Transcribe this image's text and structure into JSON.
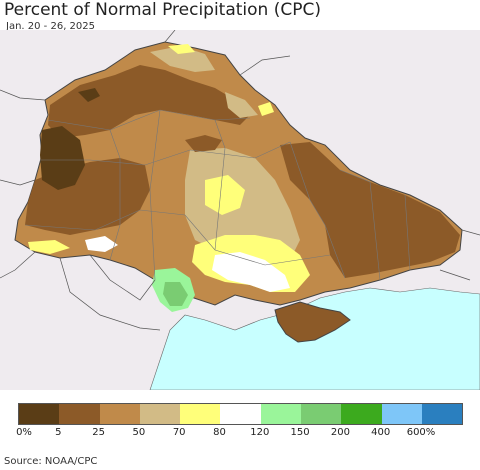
{
  "title": "Percent of Normal Precipitation (CPC)",
  "subtitle": "Jan. 20 - 26, 2025",
  "source": "Source: NOAA/CPC",
  "legend": {
    "colors": [
      "#5a3d16",
      "#8c5a28",
      "#c08a4a",
      "#d2bb86",
      "#ffff7a",
      "#ffffff",
      "#9af59a",
      "#7acc72",
      "#3caa1e",
      "#7ec6f8",
      "#2a7fbf"
    ],
    "labels": [
      "0%",
      "5",
      "25",
      "50",
      "70",
      "80",
      "120",
      "150",
      "200",
      "400",
      "600%"
    ]
  },
  "map_colors": {
    "background": "#efebef",
    "sea": "#c8ffff",
    "border": "#555555"
  }
}
